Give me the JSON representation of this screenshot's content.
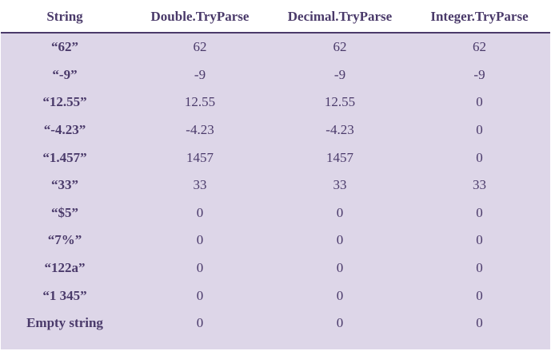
{
  "table": {
    "headers": [
      "String",
      "Double.TryParse",
      "Decimal.TryParse",
      "Integer.TryParse"
    ],
    "rows": [
      [
        "“62”",
        "62",
        "62",
        "62"
      ],
      [
        "“-9”",
        "-9",
        "-9",
        "-9"
      ],
      [
        "“12.55”",
        "12.55",
        "12.55",
        "0"
      ],
      [
        "“-4.23”",
        "-4.23",
        "-4.23",
        "0"
      ],
      [
        "“1.457”",
        "1457",
        "1457",
        "0"
      ],
      [
        "“33”",
        "33",
        "33",
        "33"
      ],
      [
        "“$5”",
        "0",
        "0",
        "0"
      ],
      [
        "“7%”",
        "0",
        "0",
        "0"
      ],
      [
        "“122a”",
        "0",
        "0",
        "0"
      ],
      [
        "“1 345”",
        "0",
        "0",
        "0"
      ],
      [
        "Empty string",
        "0",
        "0",
        "0"
      ]
    ]
  },
  "colors": {
    "row_background": "#ddd6e8",
    "text": "#4a3a6a",
    "header_background": "#ffffff"
  }
}
